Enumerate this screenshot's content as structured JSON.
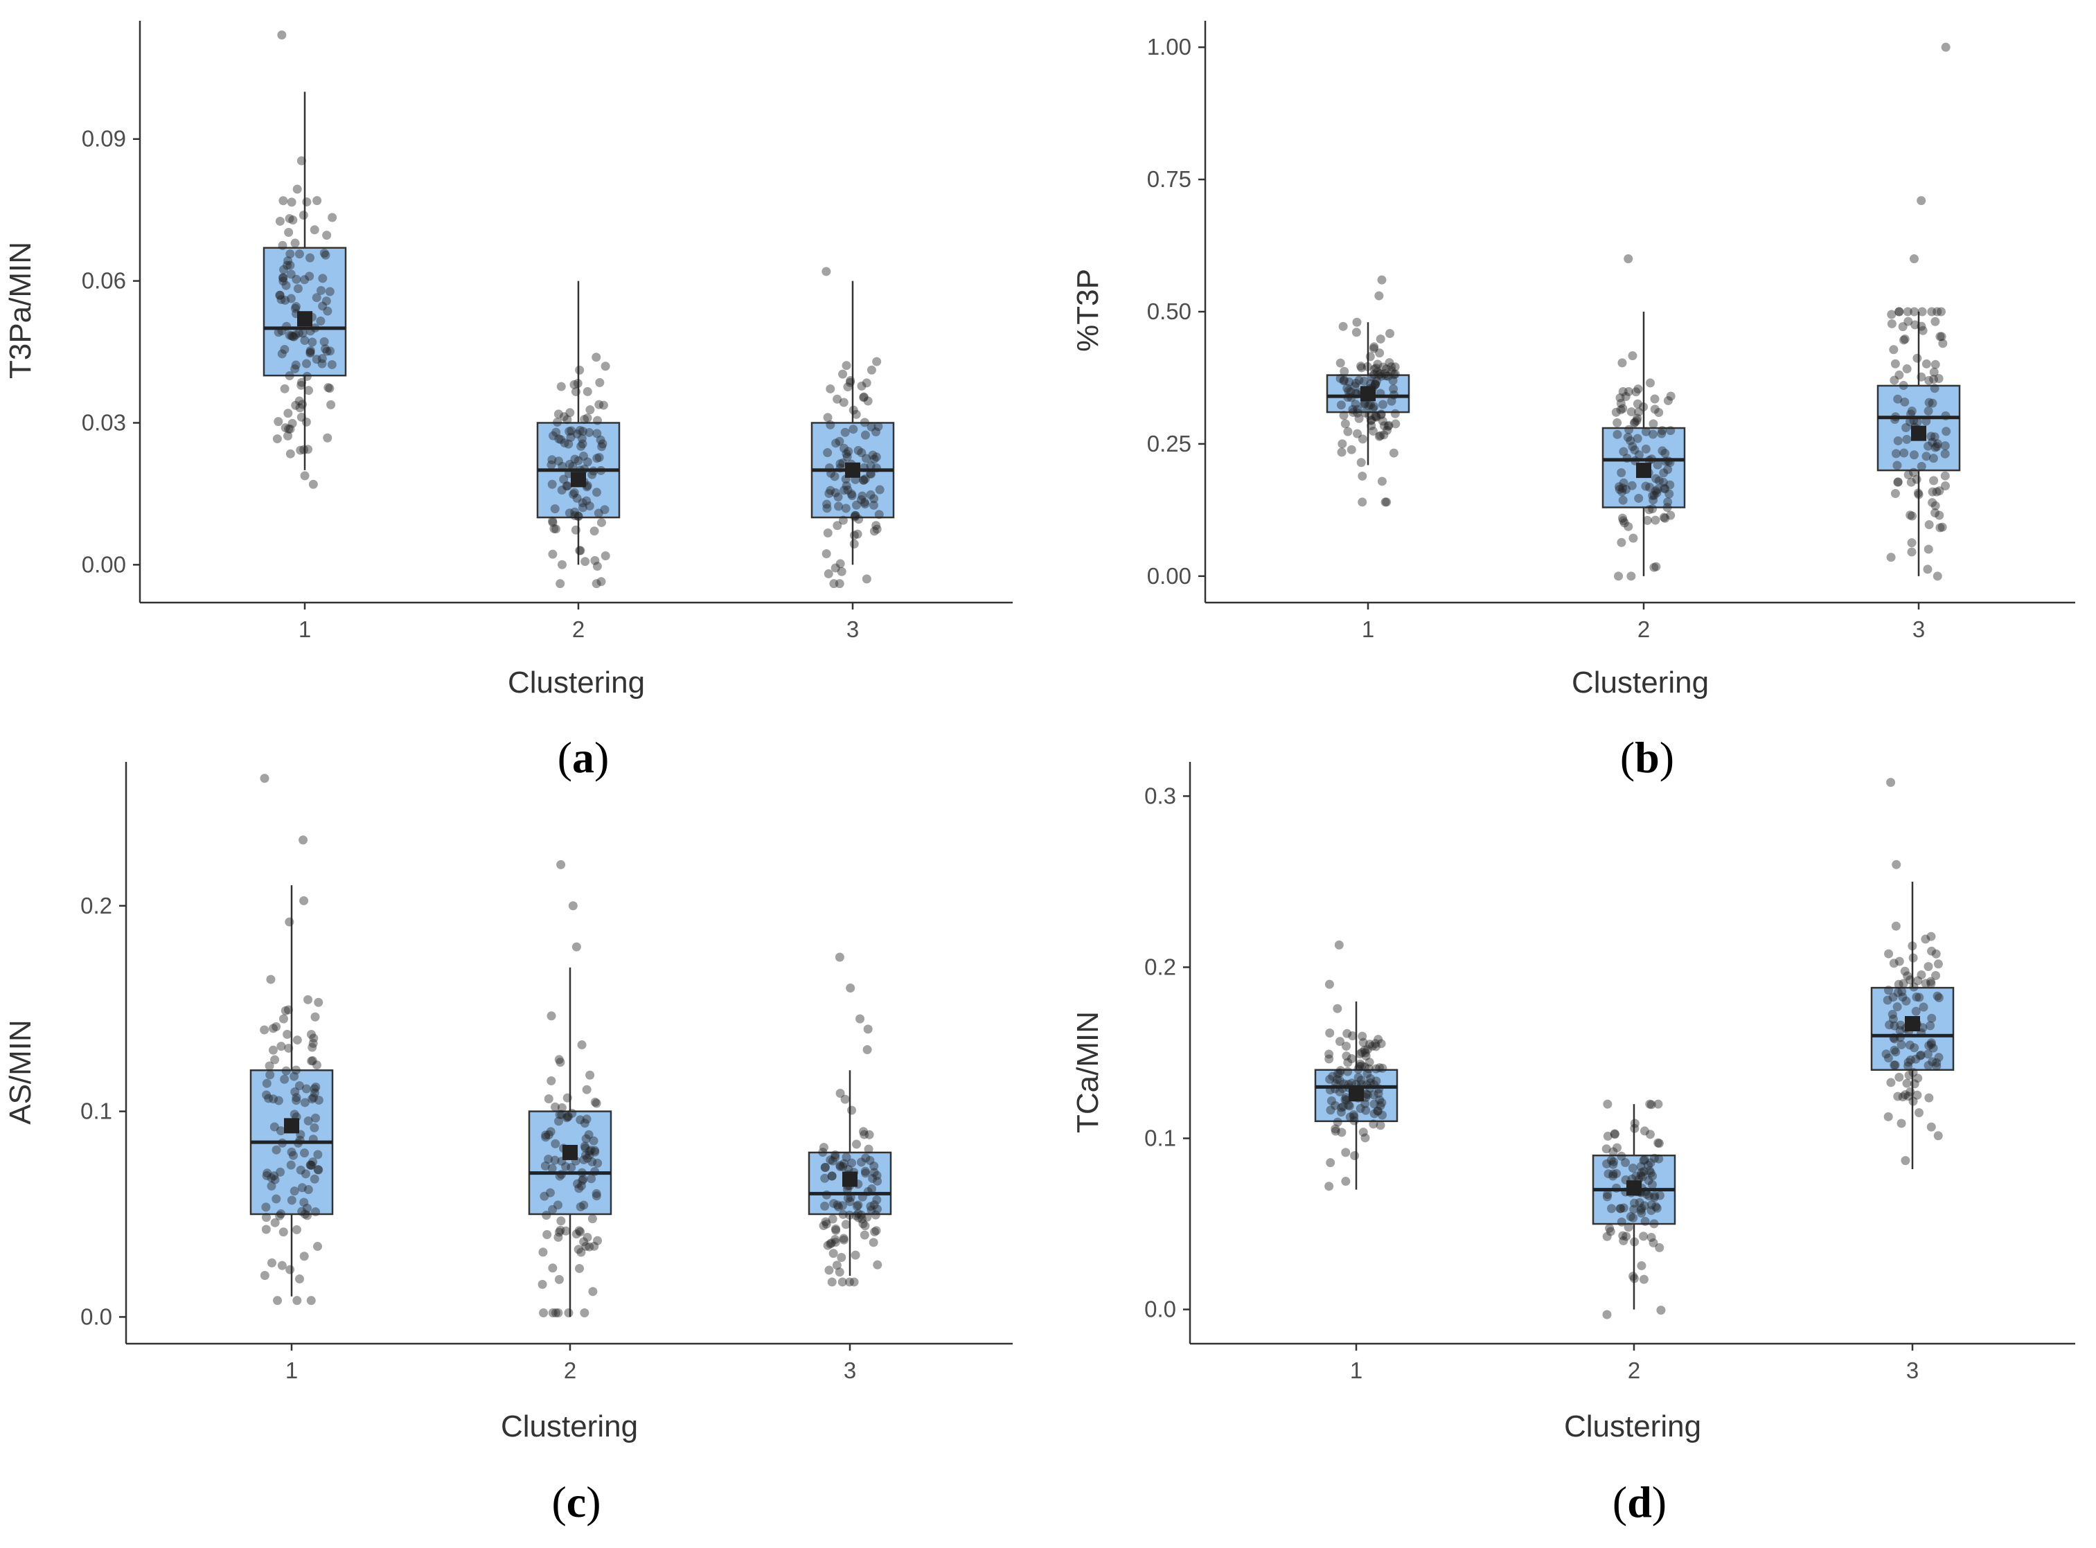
{
  "chart_data": [
    {
      "type": "box",
      "panel_label": "a",
      "title": "",
      "xlabel": "Clustering",
      "ylabel": "T3Pa/MIN",
      "categories": [
        "1",
        "2",
        "3"
      ],
      "yticks": [
        0.0,
        0.03,
        0.06,
        0.09
      ],
      "ytick_labels": [
        "0.00",
        "0.03",
        "0.06",
        "0.09"
      ],
      "ylim": [
        -0.008,
        0.115
      ],
      "box_color": "#99c4ee",
      "boxes": [
        {
          "category": "1",
          "q1": 0.04,
          "median": 0.05,
          "q3": 0.067,
          "whisker_low": 0.02,
          "whisker_high": 0.1,
          "mean": 0.052,
          "points": {
            "n": 110,
            "min": 0.017,
            "max": 0.112,
            "outliers": [
              0.112
            ]
          }
        },
        {
          "category": "2",
          "q1": 0.01,
          "median": 0.02,
          "q3": 0.03,
          "whisker_low": 0.0,
          "whisker_high": 0.06,
          "mean": 0.018,
          "points": {
            "n": 100,
            "min": -0.004,
            "max": 0.057,
            "outliers": []
          }
        },
        {
          "category": "3",
          "q1": 0.01,
          "median": 0.02,
          "q3": 0.03,
          "whisker_low": 0.0,
          "whisker_high": 0.06,
          "mean": 0.02,
          "points": {
            "n": 100,
            "min": -0.004,
            "max": 0.062,
            "outliers": [
              0.062
            ]
          }
        }
      ]
    },
    {
      "type": "box",
      "panel_label": "b",
      "title": "",
      "xlabel": "Clustering",
      "ylabel": "%T3P",
      "categories": [
        "1",
        "2",
        "3"
      ],
      "yticks": [
        0.0,
        0.25,
        0.5,
        0.75,
        1.0
      ],
      "ytick_labels": [
        "0.00",
        "0.25",
        "0.50",
        "0.75",
        "1.00"
      ],
      "ylim": [
        -0.05,
        1.05
      ],
      "box_color": "#99c4ee",
      "boxes": [
        {
          "category": "1",
          "q1": 0.31,
          "median": 0.34,
          "q3": 0.38,
          "whisker_low": 0.21,
          "whisker_high": 0.48,
          "mean": 0.345,
          "points": {
            "n": 110,
            "min": 0.14,
            "max": 0.56,
            "outliers": [
              0.14,
              0.14,
              0.53,
              0.56
            ]
          }
        },
        {
          "category": "2",
          "q1": 0.13,
          "median": 0.22,
          "q3": 0.28,
          "whisker_low": 0.0,
          "whisker_high": 0.5,
          "mean": 0.2,
          "points": {
            "n": 100,
            "min": 0.0,
            "max": 0.6,
            "outliers": [
              0.6
            ]
          }
        },
        {
          "category": "3",
          "q1": 0.2,
          "median": 0.3,
          "q3": 0.36,
          "whisker_low": 0.0,
          "whisker_high": 0.5,
          "mean": 0.27,
          "points": {
            "n": 100,
            "min": 0.0,
            "max": 1.0,
            "outliers": [
              0.6,
              0.71,
              1.0
            ]
          }
        }
      ]
    },
    {
      "type": "box",
      "panel_label": "c",
      "title": "",
      "xlabel": "Clustering",
      "ylabel": "AS/MIN",
      "categories": [
        "1",
        "2",
        "3"
      ],
      "yticks": [
        0.0,
        0.1,
        0.2
      ],
      "ytick_labels": [
        "0.0",
        "0.1",
        "0.2"
      ],
      "ylim": [
        -0.013,
        0.27
      ],
      "box_color": "#99c4ee",
      "boxes": [
        {
          "category": "1",
          "q1": 0.05,
          "median": 0.085,
          "q3": 0.12,
          "whisker_low": 0.01,
          "whisker_high": 0.21,
          "mean": 0.093,
          "points": {
            "n": 110,
            "min": 0.008,
            "max": 0.262,
            "outliers": [
              0.232,
              0.262
            ]
          }
        },
        {
          "category": "2",
          "q1": 0.05,
          "median": 0.07,
          "q3": 0.1,
          "whisker_low": 0.0,
          "whisker_high": 0.17,
          "mean": 0.08,
          "points": {
            "n": 100,
            "min": 0.002,
            "max": 0.22,
            "outliers": [
              0.18,
              0.2,
              0.22
            ]
          }
        },
        {
          "category": "3",
          "q1": 0.05,
          "median": 0.06,
          "q3": 0.08,
          "whisker_low": 0.02,
          "whisker_high": 0.12,
          "mean": 0.067,
          "points": {
            "n": 100,
            "min": 0.017,
            "max": 0.175,
            "outliers": [
              0.13,
              0.14,
              0.145,
              0.16,
              0.175
            ]
          }
        }
      ]
    },
    {
      "type": "box",
      "panel_label": "d",
      "title": "",
      "xlabel": "Clustering",
      "ylabel": "TCa/MIN",
      "categories": [
        "1",
        "2",
        "3"
      ],
      "yticks": [
        0.0,
        0.1,
        0.2,
        0.3
      ],
      "ytick_labels": [
        "0.0",
        "0.1",
        "0.2",
        "0.3"
      ],
      "ylim": [
        -0.02,
        0.32
      ],
      "box_color": "#99c4ee",
      "boxes": [
        {
          "category": "1",
          "q1": 0.11,
          "median": 0.13,
          "q3": 0.14,
          "whisker_low": 0.07,
          "whisker_high": 0.18,
          "mean": 0.126,
          "points": {
            "n": 110,
            "min": 0.072,
            "max": 0.213,
            "outliers": [
              0.19,
              0.213
            ]
          }
        },
        {
          "category": "2",
          "q1": 0.05,
          "median": 0.07,
          "q3": 0.09,
          "whisker_low": 0.0,
          "whisker_high": 0.12,
          "mean": 0.071,
          "points": {
            "n": 100,
            "min": -0.003,
            "max": 0.122,
            "outliers": []
          }
        },
        {
          "category": "3",
          "q1": 0.14,
          "median": 0.16,
          "q3": 0.188,
          "whisker_low": 0.082,
          "whisker_high": 0.25,
          "mean": 0.167,
          "points": {
            "n": 100,
            "min": 0.087,
            "max": 0.308,
            "outliers": [
              0.26,
              0.308
            ]
          }
        }
      ]
    }
  ]
}
